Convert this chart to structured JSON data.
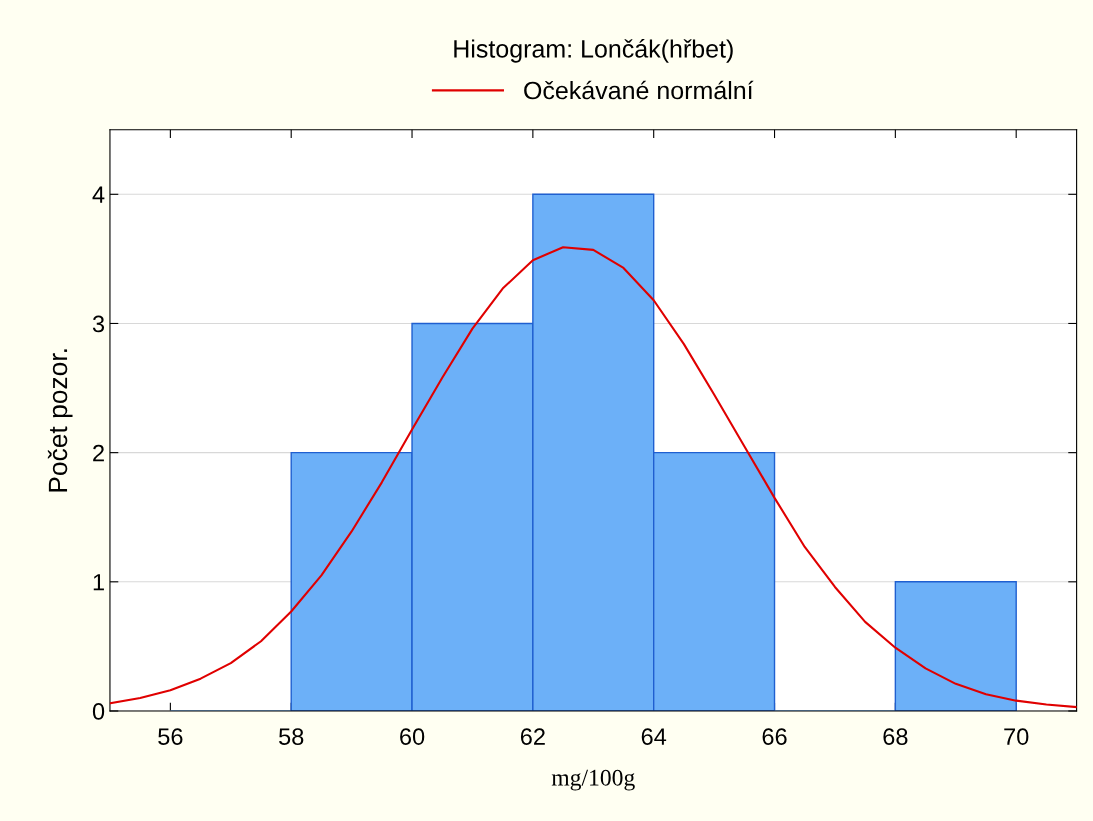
{
  "chart_data": {
    "type": "histogram",
    "title": "Histogram: Lončák(hřbet)",
    "xlabel": "mg/100g",
    "ylabel": "Počet pozor.",
    "bins": [
      56,
      58,
      60,
      62,
      64,
      66,
      68,
      70
    ],
    "values": [
      0,
      2,
      3,
      4,
      2,
      0,
      1
    ],
    "color": "#6cb0f8",
    "series": [
      {
        "name": "Očekávané normální",
        "type": "line",
        "color": "#e00000",
        "x": [
          55,
          55.5,
          56,
          56.5,
          57,
          57.5,
          58,
          58.5,
          59,
          59.5,
          60,
          60.5,
          61,
          61.5,
          62,
          62.5,
          63,
          63.5,
          64,
          64.5,
          65,
          65.5,
          66,
          66.5,
          67,
          67.5,
          68,
          68.5,
          69,
          69.5,
          70,
          70.5,
          71
        ],
        "values": [
          0.06,
          0.1,
          0.16,
          0.25,
          0.37,
          0.54,
          0.77,
          1.05,
          1.39,
          1.77,
          2.18,
          2.58,
          2.96,
          3.27,
          3.49,
          3.59,
          3.57,
          3.43,
          3.18,
          2.84,
          2.45,
          2.05,
          1.65,
          1.27,
          0.96,
          0.69,
          0.49,
          0.33,
          0.21,
          0.13,
          0.08,
          0.05,
          0.03
        ]
      }
    ],
    "xlim": [
      55,
      71
    ],
    "ylim": [
      0,
      4.5
    ],
    "xticks": [
      56,
      58,
      60,
      62,
      64,
      66,
      68,
      70
    ],
    "yticks": [
      0,
      1,
      2,
      3,
      4
    ],
    "grid": "y",
    "legend": "top"
  }
}
